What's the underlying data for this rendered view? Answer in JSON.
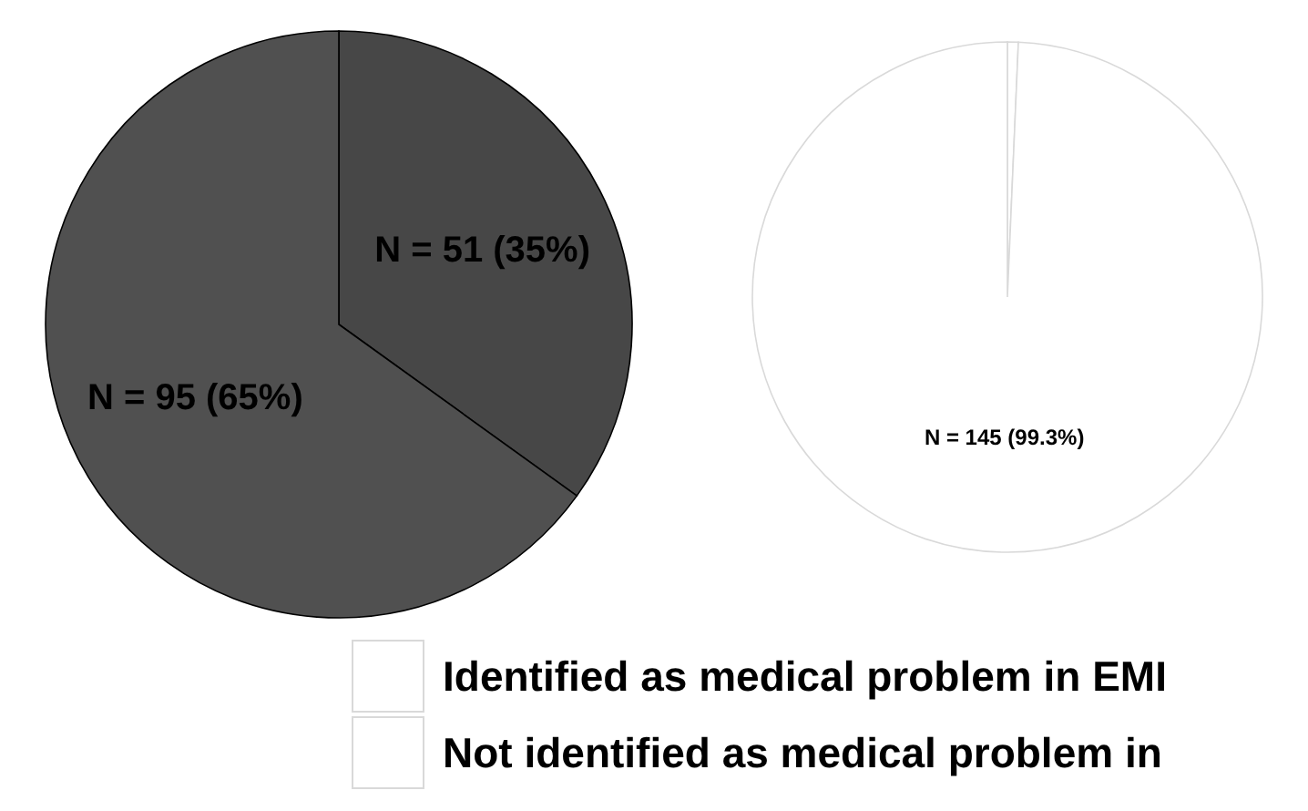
{
  "chart_data": [
    {
      "type": "pie",
      "categories": [
        null,
        null
      ],
      "values": [
        51,
        95
      ],
      "colors": [
        "#474747",
        "#505050"
      ],
      "value_labels": [
        "N = 51 (35%)",
        "N = 95 (65%)"
      ]
    },
    {
      "type": "pie",
      "categories": [
        "Identified as medical problem in EMI",
        "Not identified as medical problem in"
      ],
      "values": [
        1,
        145
      ],
      "colors": [
        "#ffffff",
        "#ffffff"
      ],
      "value_labels": [
        null,
        "N = 145 (99.3%)"
      ],
      "legend": "bottom"
    }
  ]
}
